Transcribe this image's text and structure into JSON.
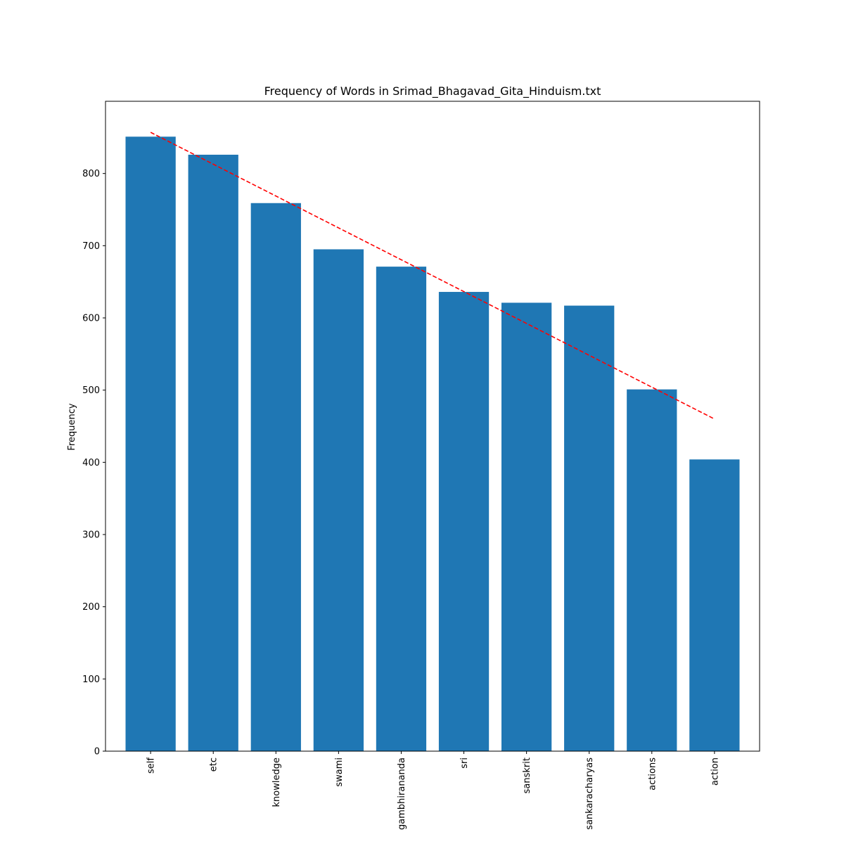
{
  "chart_data": {
    "type": "bar",
    "title": "Frequency of Words in Srimad_Bhagavad_Gita_Hinduism.txt",
    "xlabel": "",
    "ylabel": "Frequency",
    "categories": [
      "self",
      "etc",
      "knowledge",
      "swami",
      "gambhirananda",
      "sri",
      "sanskrit",
      "sankaracharyas",
      "actions",
      "action"
    ],
    "values": [
      851,
      826,
      759,
      695,
      671,
      636,
      621,
      617,
      501,
      404
    ],
    "ylim": [
      0,
      900
    ],
    "yticks": [
      0,
      100,
      200,
      300,
      400,
      500,
      600,
      700,
      800
    ],
    "x_tick_rotation": "vertical",
    "bar_color": "#1f77b4",
    "trendline": {
      "style": "dashed",
      "color": "#ff0000",
      "start_value": 857,
      "end_value": 460
    },
    "grid": false,
    "legend": "none"
  }
}
